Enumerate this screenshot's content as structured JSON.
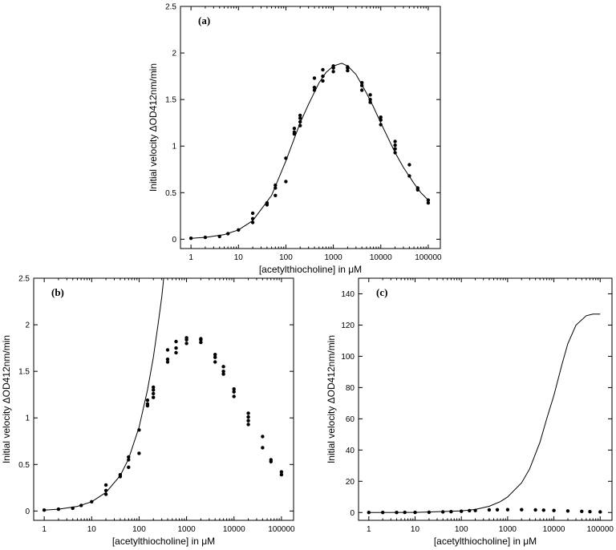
{
  "chart_data": [
    {
      "type": "scatter",
      "panel_label": "(a)",
      "xlabel": "[acetylthiocholine] in μM",
      "ylabel": "Initial velocity ΔOD412nm/min",
      "xscale": "log",
      "xlim": [
        0.6,
        180000
      ],
      "ylim": [
        -0.1,
        2.5
      ],
      "xticks": [
        1,
        10,
        100,
        1000,
        10000,
        100000
      ],
      "xtick_labels": [
        "1",
        "10",
        "100",
        "1000",
        "10000",
        "100000"
      ],
      "yticks": [
        0,
        0.5,
        1,
        1.5,
        2,
        2.5
      ],
      "ytick_labels": [
        "0",
        "0.5",
        "1",
        "1.5",
        "2",
        "2.5"
      ],
      "series": [
        {
          "x": [
            1,
            2,
            4,
            6,
            10,
            20,
            20,
            20,
            40,
            40,
            60,
            60,
            60,
            100,
            100,
            150,
            150,
            150,
            200,
            200,
            200,
            200,
            400,
            400,
            400,
            600,
            600,
            600,
            1000,
            1000,
            1000,
            2000,
            2000,
            2000,
            4000,
            4000,
            4000,
            6000,
            6000,
            6000,
            10000,
            10000,
            10000,
            20000,
            20000,
            20000,
            20000,
            40000,
            40000,
            60000,
            60000,
            100000,
            100000
          ],
          "y": [
            0.01,
            0.02,
            0.03,
            0.06,
            0.1,
            0.18,
            0.22,
            0.28,
            0.37,
            0.39,
            0.47,
            0.55,
            0.58,
            0.62,
            0.87,
            1.13,
            1.15,
            1.19,
            1.22,
            1.26,
            1.3,
            1.33,
            1.6,
            1.63,
            1.73,
            1.7,
            1.75,
            1.82,
            1.8,
            1.84,
            1.86,
            1.81,
            1.84,
            1.85,
            1.6,
            1.65,
            1.68,
            1.47,
            1.5,
            1.55,
            1.23,
            1.28,
            1.31,
            0.93,
            0.97,
            1.01,
            1.05,
            0.68,
            0.8,
            0.53,
            0.55,
            0.39,
            0.42
          ]
        }
      ],
      "fit": {
        "x": [
          1,
          2,
          5,
          10,
          20,
          50,
          100,
          200,
          300,
          500,
          700,
          1000,
          1500,
          2000,
          3000,
          5000,
          7000,
          10000,
          20000,
          30000,
          50000,
          70000,
          100000
        ],
        "y": [
          0.01,
          0.02,
          0.05,
          0.1,
          0.2,
          0.47,
          0.84,
          1.25,
          1.45,
          1.68,
          1.79,
          1.86,
          1.89,
          1.86,
          1.77,
          1.57,
          1.42,
          1.25,
          0.93,
          0.77,
          0.6,
          0.5,
          0.42
        ]
      }
    },
    {
      "type": "scatter",
      "panel_label": "(b)",
      "xlabel": "[acetylthiocholine] in μM",
      "ylabel": "Initial velocity ΔOD412nm/min",
      "xscale": "log",
      "xlim": [
        0.6,
        180000
      ],
      "ylim": [
        -0.1,
        2.5
      ],
      "xticks": [
        1,
        10,
        100,
        1000,
        10000,
        100000
      ],
      "xtick_labels": [
        "1",
        "10",
        "100",
        "1000",
        "10000",
        "100000"
      ],
      "yticks": [
        0,
        0.5,
        1,
        1.5,
        2,
        2.5
      ],
      "ytick_labels": [
        "0",
        "0.5",
        "1",
        "1.5",
        "2",
        "2.5"
      ],
      "series": [
        {
          "x": [
            1,
            2,
            4,
            6,
            10,
            20,
            20,
            20,
            40,
            40,
            60,
            60,
            60,
            100,
            100,
            150,
            150,
            150,
            200,
            200,
            200,
            200,
            400,
            400,
            400,
            600,
            600,
            600,
            1000,
            1000,
            1000,
            2000,
            2000,
            2000,
            4000,
            4000,
            4000,
            6000,
            6000,
            6000,
            10000,
            10000,
            10000,
            20000,
            20000,
            20000,
            20000,
            40000,
            40000,
            60000,
            60000,
            100000,
            100000
          ],
          "y": [
            0.01,
            0.02,
            0.03,
            0.06,
            0.1,
            0.18,
            0.22,
            0.28,
            0.37,
            0.39,
            0.47,
            0.55,
            0.58,
            0.62,
            0.87,
            1.13,
            1.15,
            1.19,
            1.22,
            1.26,
            1.3,
            1.33,
            1.6,
            1.63,
            1.73,
            1.7,
            1.75,
            1.82,
            1.8,
            1.84,
            1.86,
            1.81,
            1.84,
            1.85,
            1.6,
            1.65,
            1.68,
            1.47,
            1.5,
            1.55,
            1.23,
            1.28,
            1.31,
            0.93,
            0.97,
            1.01,
            1.05,
            0.68,
            0.8,
            0.53,
            0.55,
            0.39,
            0.42
          ]
        }
      ],
      "fit": {
        "x": [
          1,
          2,
          5,
          10,
          20,
          40,
          60,
          100,
          150,
          200,
          250,
          300,
          330
        ],
        "y": [
          0.01,
          0.02,
          0.05,
          0.1,
          0.2,
          0.38,
          0.56,
          0.9,
          1.3,
          1.65,
          2.0,
          2.3,
          2.5
        ]
      }
    },
    {
      "type": "scatter",
      "panel_label": "(c)",
      "xlabel": "[acetylthiocholine] in μM",
      "ylabel": "Initial velocity ΔOD412nm/min",
      "xscale": "log",
      "xlim": [
        0.6,
        180000
      ],
      "ylim": [
        -5,
        150
      ],
      "xticks": [
        1,
        10,
        100,
        1000,
        10000,
        100000
      ],
      "xtick_labels": [
        "1",
        "10",
        "100",
        "1000",
        "10000",
        "100000"
      ],
      "yticks": [
        0,
        20,
        40,
        60,
        80,
        100,
        120,
        140
      ],
      "ytick_labels": [
        "0",
        "20",
        "40",
        "60",
        "80",
        "100",
        "120",
        "140"
      ],
      "series": [
        {
          "x": [
            1,
            2,
            4,
            6,
            10,
            20,
            40,
            60,
            100,
            150,
            200,
            400,
            600,
            1000,
            2000,
            4000,
            6000,
            10000,
            20000,
            40000,
            60000,
            100000
          ],
          "y": [
            0.01,
            0.02,
            0.03,
            0.06,
            0.1,
            0.2,
            0.38,
            0.55,
            0.8,
            1.2,
            1.3,
            1.7,
            1.8,
            1.85,
            1.85,
            1.65,
            1.5,
            1.3,
            1.0,
            0.75,
            0.55,
            0.4
          ]
        }
      ],
      "fit": {
        "x": [
          1,
          10,
          100,
          200,
          400,
          700,
          1000,
          2000,
          3000,
          5000,
          7000,
          10000,
          15000,
          20000,
          30000,
          50000,
          70000,
          100000
        ],
        "y": [
          0.0,
          0.1,
          1.0,
          2.0,
          4.0,
          7.0,
          10,
          19,
          28,
          45,
          60,
          75,
          95,
          108,
          120,
          126,
          127,
          127
        ]
      }
    }
  ]
}
